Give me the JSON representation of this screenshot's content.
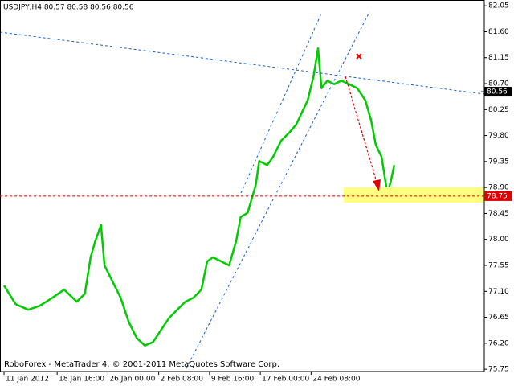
{
  "chart_data": {
    "type": "line",
    "header": "USDJPY,H4  80.57 80.58 80.56 80.56",
    "footer": "RoboForex - MetaTrader 4, © 2001-2011 MetaQuotes Software Corp.",
    "color": "#00cc00",
    "x": [
      0,
      10,
      21,
      31,
      42,
      52,
      63,
      70,
      75,
      79,
      84,
      87,
      94,
      101,
      108,
      115,
      122,
      129,
      136,
      143,
      150,
      157,
      164,
      171,
      176,
      181,
      188,
      195,
      201,
      205,
      211,
      218,
      221,
      228,
      233,
      240,
      247,
      253,
      258,
      263,
      268,
      272,
      275,
      280,
      286,
      292,
      299,
      306,
      313,
      318,
      322,
      327,
      332,
      335,
      338
    ],
    "values": [
      77.2,
      76.88,
      76.78,
      76.85,
      76.99,
      77.13,
      76.92,
      77.06,
      77.69,
      77.97,
      78.25,
      77.55,
      77.27,
      76.99,
      76.57,
      76.29,
      76.16,
      76.22,
      76.43,
      76.64,
      76.78,
      76.92,
      76.99,
      77.13,
      77.62,
      77.69,
      77.62,
      77.55,
      77.97,
      78.39,
      78.46,
      78.94,
      79.36,
      79.29,
      79.43,
      79.71,
      79.85,
      79.99,
      80.2,
      80.41,
      80.82,
      81.31,
      80.62,
      80.75,
      80.69,
      80.75,
      80.69,
      80.62,
      80.41,
      80.06,
      79.64,
      79.43,
      78.8,
      79.01,
      79.29
    ],
    "xlim": [
      -3.5,
      416
    ],
    "xticks": [
      {
        "value": 0,
        "label": "11 Jan 2012"
      },
      {
        "value": 46,
        "label": "18 Jan 16:00"
      },
      {
        "value": 90,
        "label": "26 Jan 00:00"
      },
      {
        "value": 134,
        "label": "2 Feb 08:00"
      },
      {
        "value": 178,
        "label": "9 Feb 16:00"
      },
      {
        "value": 222,
        "label": "17 Feb 00:00"
      },
      {
        "value": 266,
        "label": "24 Feb 08:00"
      }
    ],
    "ylim": [
      75.71,
      82.15
    ],
    "yticks": [
      {
        "value": 82.05,
        "label": "82.05"
      },
      {
        "value": 81.6,
        "label": "81.60"
      },
      {
        "value": 81.15,
        "label": "81.15"
      },
      {
        "value": 80.7,
        "label": "80.70"
      },
      {
        "value": 80.25,
        "label": "80.25"
      },
      {
        "value": 79.8,
        "label": "79.80"
      },
      {
        "value": 79.35,
        "label": "79.35"
      },
      {
        "value": 78.9,
        "label": "78.90"
      },
      {
        "value": 78.45,
        "label": "78.45"
      },
      {
        "value": 78.0,
        "label": "78.00"
      },
      {
        "value": 77.55,
        "label": "77.55"
      },
      {
        "value": 77.1,
        "label": "77.10"
      },
      {
        "value": 76.65,
        "label": "76.65"
      },
      {
        "value": 76.2,
        "label": "76.20"
      },
      {
        "value": 75.75,
        "label": "75.75"
      }
    ],
    "bid": 80.56,
    "level": 78.75
  }
}
